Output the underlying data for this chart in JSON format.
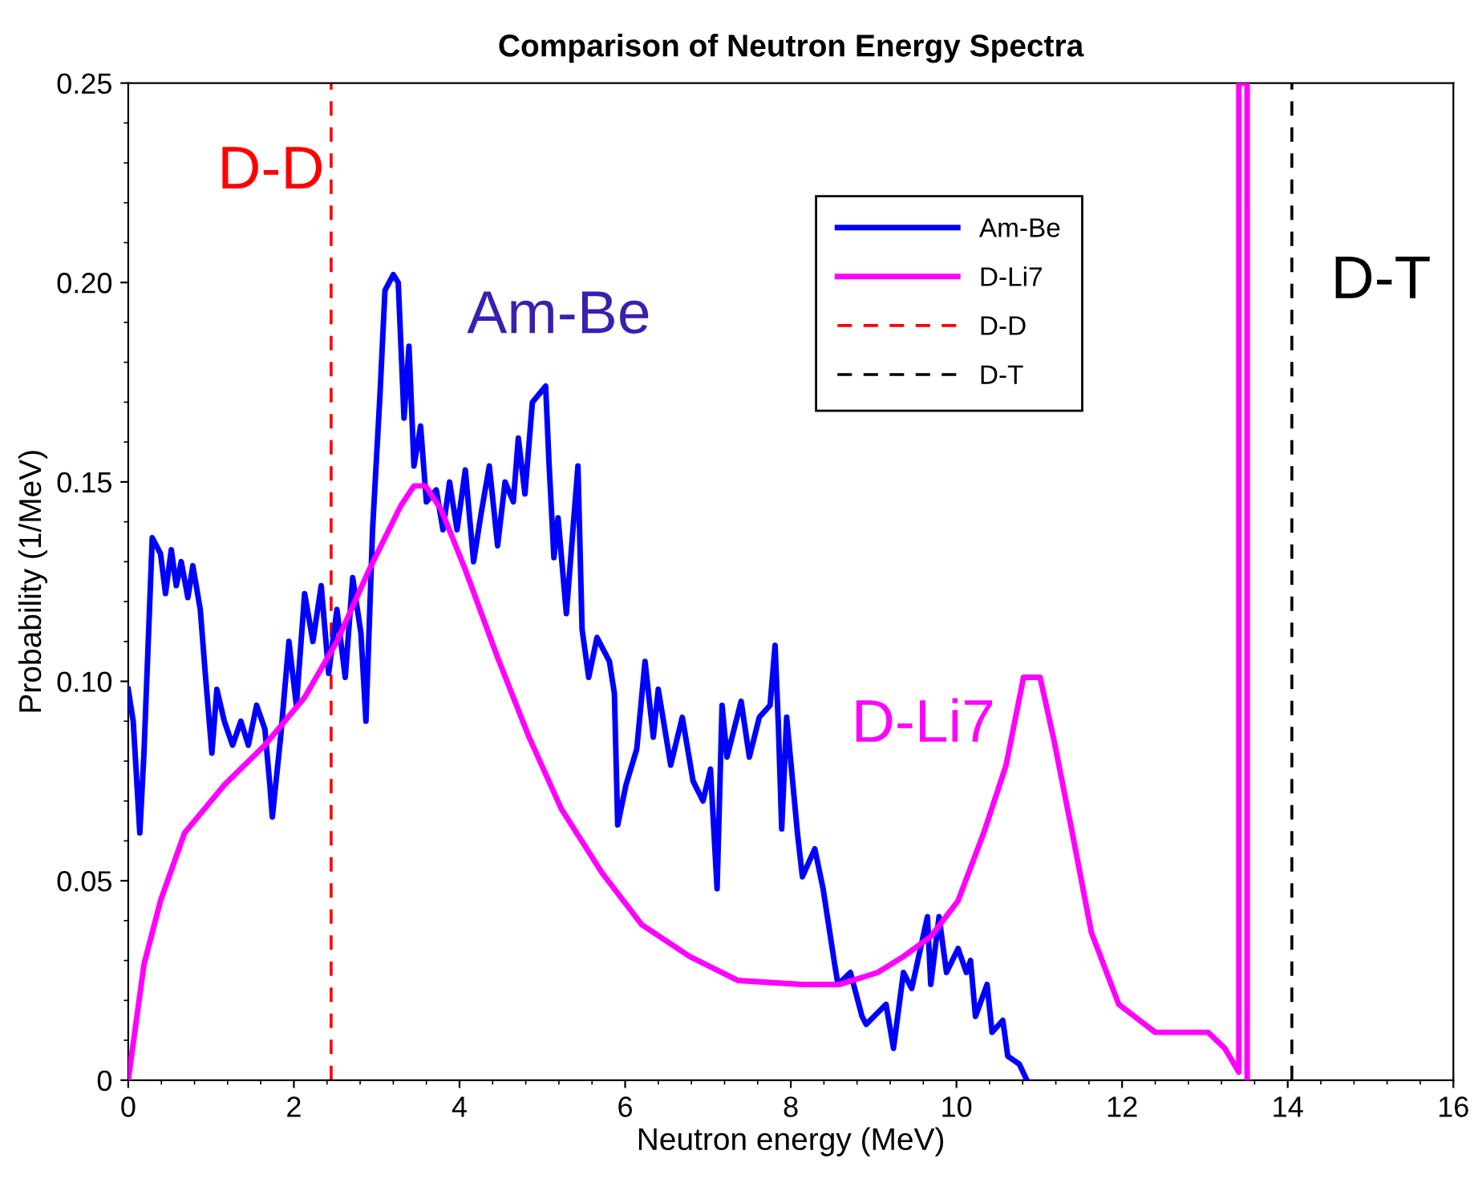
{
  "chart_data": {
    "type": "line",
    "title": "Comparison of Neutron Energy Spectra",
    "xlabel": "Neutron energy (MeV)",
    "ylabel": "Probability (1/MeV)",
    "xlim": [
      0,
      16
    ],
    "xticks": [
      0,
      2,
      4,
      6,
      8,
      10,
      12,
      14,
      16
    ],
    "ylim": [
      0,
      0.25
    ],
    "yticks": [
      0,
      0.05,
      {
        "value": 0.1,
        "label": "0.10"
      },
      0.15,
      {
        "value": 0.2,
        "label": "0.20"
      },
      0.25
    ],
    "grid": false,
    "legend": "top right",
    "line_style": "solid",
    "marker": "none",
    "series": [
      {
        "name": "Am-Be",
        "color": "#0000ff",
        "x": [
          0.0,
          0.06,
          0.14,
          0.19,
          0.29,
          0.39,
          0.45,
          0.52,
          0.58,
          0.64,
          0.72,
          0.78,
          0.87,
          0.93,
          1.01,
          1.07,
          1.16,
          1.26,
          1.36,
          1.45,
          1.55,
          1.65,
          1.71,
          1.74,
          1.84,
          1.94,
          2.03,
          2.13,
          2.23,
          2.33,
          2.42,
          2.52,
          2.62,
          2.71,
          2.81,
          2.87,
          2.95,
          3.04,
          3.1,
          3.2,
          3.26,
          3.33,
          3.39,
          3.45,
          3.53,
          3.6,
          3.72,
          3.8,
          3.88,
          3.97,
          4.07,
          4.17,
          4.26,
          4.36,
          4.46,
          4.55,
          4.65,
          4.71,
          4.79,
          4.88,
          5.04,
          5.08,
          5.14,
          5.19,
          5.29,
          5.43,
          5.48,
          5.56,
          5.66,
          5.81,
          5.87,
          5.91,
          6.01,
          6.14,
          6.24,
          6.34,
          6.4,
          6.55,
          6.69,
          6.82,
          6.94,
          7.03,
          7.11,
          7.17,
          7.23,
          7.4,
          7.5,
          7.62,
          7.75,
          7.81,
          7.85,
          7.89,
          7.95,
          8.08,
          8.14,
          8.29,
          8.39,
          8.53,
          8.57,
          8.72,
          8.86,
          8.91,
          9.15,
          9.24,
          9.36,
          9.46,
          9.65,
          9.69,
          9.79,
          9.88,
          10.02,
          10.12,
          10.17,
          10.23,
          10.37,
          10.43,
          10.56,
          10.62,
          10.76,
          10.85
        ],
        "values": [
          0.098,
          0.09,
          0.062,
          0.082,
          0.136,
          0.132,
          0.122,
          0.133,
          0.124,
          0.13,
          0.121,
          0.129,
          0.118,
          0.102,
          0.082,
          0.098,
          0.09,
          0.084,
          0.09,
          0.084,
          0.094,
          0.088,
          0.074,
          0.066,
          0.086,
          0.11,
          0.094,
          0.122,
          0.11,
          0.124,
          0.102,
          0.118,
          0.101,
          0.126,
          0.112,
          0.09,
          0.138,
          0.172,
          0.198,
          0.202,
          0.2,
          0.166,
          0.184,
          0.154,
          0.164,
          0.145,
          0.148,
          0.138,
          0.15,
          0.138,
          0.153,
          0.13,
          0.142,
          0.154,
          0.134,
          0.15,
          0.145,
          0.161,
          0.147,
          0.17,
          0.174,
          0.155,
          0.131,
          0.141,
          0.117,
          0.154,
          0.113,
          0.101,
          0.111,
          0.105,
          0.097,
          0.064,
          0.074,
          0.083,
          0.105,
          0.086,
          0.098,
          0.079,
          0.091,
          0.075,
          0.07,
          0.078,
          0.048,
          0.094,
          0.081,
          0.095,
          0.081,
          0.091,
          0.094,
          0.109,
          0.089,
          0.063,
          0.091,
          0.062,
          0.051,
          0.058,
          0.048,
          0.029,
          0.024,
          0.027,
          0.016,
          0.014,
          0.019,
          0.008,
          0.027,
          0.023,
          0.041,
          0.024,
          0.041,
          0.027,
          0.033,
          0.027,
          0.03,
          0.016,
          0.024,
          0.012,
          0.015,
          0.006,
          0.004,
          0.0
        ]
      },
      {
        "name": "D-Li7",
        "color": "#ff00ff",
        "x": [
          0.0,
          0.19,
          0.39,
          0.68,
          1.16,
          1.65,
          2.13,
          2.52,
          2.91,
          3.29,
          3.45,
          3.59,
          3.78,
          4.07,
          4.46,
          4.84,
          5.23,
          5.72,
          6.2,
          6.78,
          7.36,
          8.14,
          8.59,
          9.05,
          9.36,
          9.69,
          10.02,
          10.33,
          10.6,
          10.81,
          11.01,
          11.18,
          11.38,
          11.63,
          11.96,
          12.4,
          12.93,
          13.04,
          13.24,
          13.41,
          13.41,
          13.51,
          13.51
        ],
        "values": [
          0.0,
          0.029,
          0.045,
          0.062,
          0.074,
          0.084,
          0.096,
          0.11,
          0.128,
          0.144,
          0.149,
          0.149,
          0.143,
          0.128,
          0.106,
          0.086,
          0.068,
          0.052,
          0.039,
          0.031,
          0.025,
          0.024,
          0.024,
          0.027,
          0.031,
          0.036,
          0.045,
          0.062,
          0.079,
          0.101,
          0.101,
          0.085,
          0.064,
          0.037,
          0.019,
          0.012,
          0.012,
          0.012,
          0.008,
          0.002,
          0.25,
          0.25,
          0.0
        ]
      }
    ],
    "ref_lines": [
      {
        "axis": "x",
        "value": 2.45,
        "label": "D-D",
        "color": "#ff0000",
        "line_style": "dashed"
      },
      {
        "axis": "x",
        "value": 14.05,
        "label": "D-T",
        "color": "#000000",
        "line_style": "dashed"
      }
    ],
    "annotations": [
      "Am-Be",
      "D-Li7"
    ]
  }
}
